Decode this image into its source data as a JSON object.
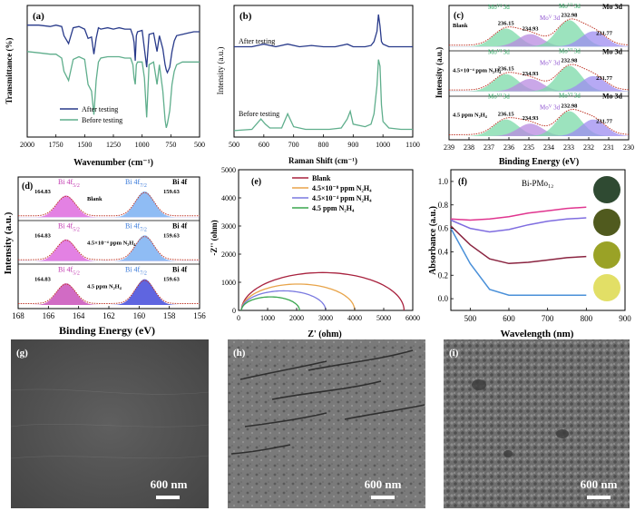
{
  "chart_data": [
    {
      "panel": "(a)",
      "type": "line",
      "xlabel": "Wavenumber (cm⁻¹)",
      "ylabel": "Transmittance (%)",
      "xlim": [
        2000,
        500
      ],
      "xticks": [
        "2000",
        "1750",
        "1500",
        "1250",
        "1000",
        "750",
        "500"
      ],
      "series": [
        {
          "name": "After testing",
          "color": "#283a8a",
          "x": [
            2000,
            1900,
            1800,
            1750,
            1700,
            1680,
            1640,
            1600,
            1550,
            1500,
            1470,
            1440,
            1420,
            1400,
            1380,
            1360,
            1300,
            1250,
            1200,
            1150,
            1100,
            1080,
            1070,
            1060,
            1050,
            1040,
            1000,
            980,
            960,
            940,
            900,
            870,
            850,
            820,
            800,
            790,
            780,
            760,
            740,
            720,
            700,
            650,
            600,
            550,
            500
          ],
          "y": [
            0.8,
            0.8,
            0.79,
            0.8,
            0.79,
            0.72,
            0.66,
            0.78,
            0.79,
            0.77,
            0.7,
            0.71,
            0.58,
            0.7,
            0.78,
            0.77,
            0.78,
            0.77,
            0.78,
            0.77,
            0.77,
            0.72,
            0.67,
            0.53,
            0.72,
            0.75,
            0.76,
            0.62,
            0.48,
            0.73,
            0.74,
            0.6,
            0.72,
            0.62,
            0.5,
            0.46,
            0.44,
            0.48,
            0.6,
            0.68,
            0.72,
            0.73,
            0.74,
            0.75,
            0.75
          ]
        },
        {
          "name": "Before testing",
          "color": "#5fae8c",
          "x": [
            2000,
            1900,
            1800,
            1750,
            1700,
            1680,
            1640,
            1600,
            1550,
            1500,
            1470,
            1440,
            1420,
            1400,
            1380,
            1360,
            1300,
            1250,
            1200,
            1150,
            1100,
            1080,
            1070,
            1060,
            1050,
            1040,
            1000,
            980,
            960,
            940,
            900,
            870,
            850,
            820,
            800,
            790,
            780,
            760,
            740,
            720,
            700,
            650,
            600,
            550,
            500
          ],
          "y": [
            0.6,
            0.59,
            0.58,
            0.58,
            0.55,
            0.45,
            0.38,
            0.54,
            0.56,
            0.54,
            0.35,
            0.3,
            0.12,
            0.38,
            0.52,
            0.55,
            0.56,
            0.56,
            0.56,
            0.55,
            0.55,
            0.5,
            0.4,
            0.35,
            0.5,
            0.52,
            0.52,
            0.4,
            0.1,
            0.5,
            0.52,
            0.35,
            0.5,
            0.3,
            0.08,
            0.02,
            0.05,
            0.15,
            0.35,
            0.45,
            0.5,
            0.52,
            0.52,
            0.52,
            0.52
          ]
        }
      ]
    },
    {
      "panel": "(b)",
      "type": "line",
      "xlabel": "Raman Shift (cm⁻¹)",
      "ylabel": "Intensity (a.u.)",
      "xlim": [
        500,
        1100
      ],
      "xticks": [
        "500",
        "600",
        "700",
        "800",
        "900",
        "1000",
        "1100"
      ],
      "series": [
        {
          "name": "After testing",
          "color": "#283a8a",
          "x": [
            500,
            560,
            600,
            640,
            680,
            720,
            760,
            800,
            840,
            880,
            900,
            940,
            960,
            970,
            980,
            985,
            990,
            995,
            1000,
            1020,
            1060,
            1100
          ],
          "y": [
            0.7,
            0.7,
            0.72,
            0.7,
            0.72,
            0.7,
            0.71,
            0.7,
            0.7,
            0.72,
            0.7,
            0.7,
            0.71,
            0.74,
            0.82,
            0.95,
            0.86,
            0.74,
            0.72,
            0.7,
            0.7,
            0.7
          ]
        },
        {
          "name": "Before testing",
          "color": "#5fae8c",
          "x": [
            500,
            560,
            590,
            605,
            620,
            660,
            680,
            700,
            740,
            780,
            820,
            860,
            880,
            890,
            900,
            940,
            960,
            970,
            980,
            985,
            990,
            995,
            1000,
            1020,
            1060,
            1100
          ],
          "y": [
            0.05,
            0.06,
            0.14,
            0.1,
            0.07,
            0.07,
            0.18,
            0.08,
            0.06,
            0.06,
            0.06,
            0.07,
            0.14,
            0.2,
            0.1,
            0.08,
            0.1,
            0.18,
            0.4,
            0.6,
            0.55,
            0.25,
            0.12,
            0.07,
            0.06,
            0.06
          ]
        }
      ],
      "annotations": [
        "After testing",
        "Before testing"
      ]
    },
    {
      "panel": "(c)",
      "type": "line",
      "title": "Mo 3d",
      "xlabel": "Binding Energy (eV)",
      "ylabel": "Intensity (a.u.)",
      "xlim": [
        239,
        230
      ],
      "xticks": [
        "239",
        "238",
        "237",
        "236",
        "235",
        "234",
        "233",
        "232",
        "231",
        "230"
      ],
      "subpanels": [
        {
          "label": "Blank",
          "peaks": [
            {
              "label": "236.15",
              "center": 236.15,
              "height": 0.65,
              "color": "#7bd9a8"
            },
            {
              "label": "234.93",
              "center": 234.93,
              "height": 0.45,
              "color": "#b88ae0"
            },
            {
              "label": "232.98",
              "center": 232.98,
              "height": 0.95,
              "color": "#7bd9a8"
            },
            {
              "label": "231.77",
              "center": 231.77,
              "height": 0.55,
              "color": "#9d8cf0"
            }
          ]
        },
        {
          "label": "4.5×10⁻⁴ ppm N₂H₄",
          "peaks": [
            {
              "label": "236.15",
              "center": 236.15,
              "height": 0.62,
              "color": "#7bd9a8"
            },
            {
              "label": "234.93",
              "center": 234.93,
              "height": 0.45,
              "color": "#b88ae0"
            },
            {
              "label": "232.98",
              "center": 232.98,
              "height": 0.92,
              "color": "#7bd9a8"
            },
            {
              "label": "231.77",
              "center": 231.77,
              "height": 0.55,
              "color": "#9d8cf0"
            }
          ]
        },
        {
          "label": "4.5 ppm N₂H₄",
          "peaks": [
            {
              "label": "236.15",
              "center": 236.15,
              "height": 0.6,
              "color": "#7bd9a8"
            },
            {
              "label": "234.93",
              "center": 234.93,
              "height": 0.45,
              "color": "#b88ae0"
            },
            {
              "label": "232.98",
              "center": 232.98,
              "height": 0.9,
              "color": "#7bd9a8"
            },
            {
              "label": "231.77",
              "center": 231.77,
              "height": 0.6,
              "color": "#9d8cf0"
            }
          ]
        }
      ],
      "species_labels": [
        "Mo",
        "VI",
        "V",
        "3d"
      ]
    },
    {
      "panel": "(d)",
      "type": "line",
      "title": "Bi 4f",
      "xlabel": "Binding Energy (eV)",
      "ylabel": "Intensity (a.u.)",
      "xlim": [
        168,
        156
      ],
      "xticks": [
        "168",
        "166",
        "164",
        "162",
        "160",
        "158",
        "156"
      ],
      "subpanels": [
        {
          "label": "Blank",
          "peaks": [
            {
              "label": "164.83",
              "center": 164.83,
              "height": 0.8,
              "color": "#d957d9"
            },
            {
              "label": "159.63",
              "center": 159.63,
              "height": 0.95,
              "color": "#6aa6f0"
            }
          ]
        },
        {
          "label": "4.5×10⁻⁴ ppm N₂H₄",
          "peaks": [
            {
              "label": "164.83",
              "center": 164.83,
              "height": 0.8,
              "color": "#d957d9"
            },
            {
              "label": "159.63",
              "center": 159.63,
              "height": 0.95,
              "color": "#6aa6f0"
            }
          ]
        },
        {
          "label": "4.5 ppm N₂H₄",
          "peaks": [
            {
              "label": "164.83",
              "center": 164.83,
              "height": 0.8,
              "color": "#c23ab0"
            },
            {
              "label": "159.63",
              "center": 159.63,
              "height": 0.95,
              "color": "#2a32d6"
            }
          ]
        }
      ],
      "species_labels": [
        "Bi 4f",
        "5/2",
        "7/2"
      ]
    },
    {
      "panel": "(e)",
      "type": "line",
      "xlabel": "Z' (ohm)",
      "ylabel": "-Z'' (ohm)",
      "xlim": [
        0,
        6000
      ],
      "ylim": [
        0,
        5000
      ],
      "xticks": [
        "0",
        "1000",
        "2000",
        "3000",
        "4000",
        "5000",
        "6000"
      ],
      "yticks": [
        "0",
        "1000",
        "2000",
        "3000",
        "4000",
        "5000"
      ],
      "series": [
        {
          "name": "Blank",
          "color": "#a8223e",
          "x0": 100,
          "diameter": 5600
        },
        {
          "name": "4.5×10⁻⁸ ppm N₂H₄",
          "color": "#e8a44a",
          "x0": 100,
          "diameter": 3900
        },
        {
          "name": "4.5×10⁻⁴ ppm N₂H₄",
          "color": "#7a7ae0",
          "x0": 100,
          "diameter": 2900
        },
        {
          "name": "4.5 ppm N₂H₄",
          "color": "#3aa64f",
          "x0": 100,
          "diameter": 2000
        }
      ]
    },
    {
      "panel": "(f)",
      "type": "line",
      "title": "Bi-PMo₁₂",
      "xlabel": "Wavelength (nm)",
      "ylabel": "Absorbance (a.u.)",
      "xlim": [
        450,
        900
      ],
      "ylim": [
        -0.1,
        1.1
      ],
      "xticks": [
        "500",
        "600",
        "700",
        "800",
        "900"
      ],
      "yticks": [
        "0.0",
        "0.2",
        "0.4",
        "0.6",
        "0.8",
        "1.0"
      ],
      "series": [
        {
          "color": "#e0358f",
          "x": [
            450,
            500,
            550,
            600,
            650,
            700,
            750,
            800
          ],
          "y": [
            0.68,
            0.67,
            0.68,
            0.7,
            0.73,
            0.75,
            0.77,
            0.78
          ]
        },
        {
          "color": "#7f6de0",
          "x": [
            450,
            500,
            550,
            600,
            650,
            700,
            750,
            800
          ],
          "y": [
            0.67,
            0.6,
            0.57,
            0.59,
            0.63,
            0.66,
            0.68,
            0.69
          ]
        },
        {
          "color": "#8a2440",
          "x": [
            450,
            500,
            550,
            600,
            650,
            700,
            750,
            800
          ],
          "y": [
            0.62,
            0.46,
            0.34,
            0.3,
            0.31,
            0.33,
            0.35,
            0.36
          ]
        },
        {
          "color": "#4a90d9",
          "x": [
            450,
            500,
            550,
            600,
            650,
            700,
            750,
            800
          ],
          "y": [
            0.6,
            0.3,
            0.08,
            0.03,
            0.03,
            0.03,
            0.03,
            0.03
          ]
        }
      ],
      "swatches": [
        "#2f4a32",
        "#505a1e",
        "#9aa226",
        "#e2df66"
      ]
    },
    {
      "panel": "(g)",
      "type": "image",
      "scale_bar": "600 nm"
    },
    {
      "panel": "(h)",
      "type": "image",
      "scale_bar": "600 nm"
    },
    {
      "panel": "(i)",
      "type": "image",
      "scale_bar": "600 nm"
    }
  ]
}
